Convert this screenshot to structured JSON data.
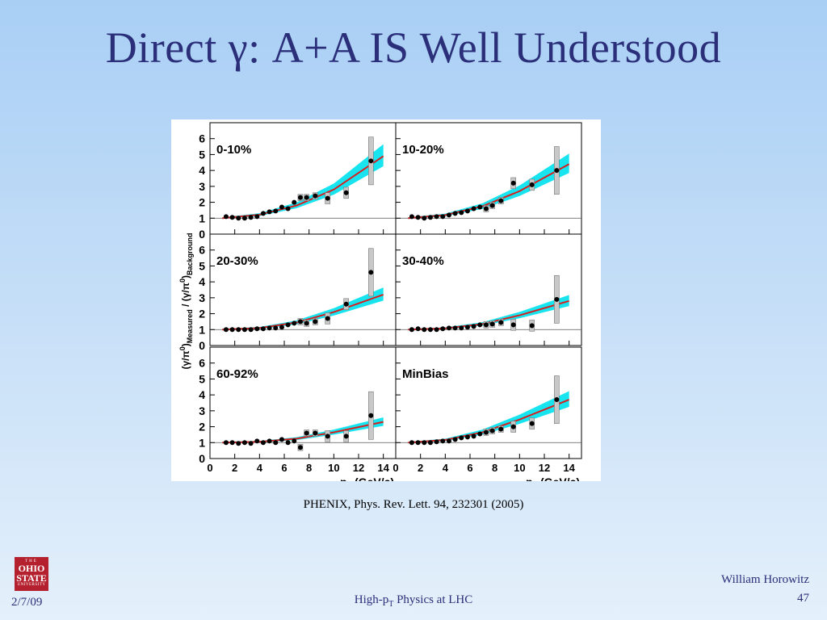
{
  "slide": {
    "title": "Direct γ: A+A IS Well Understood",
    "citation": "PHENIX, Phys. Rev. Lett. 94, 232301 (2005)",
    "logo": {
      "line1": "THE",
      "line2a": "OHIO",
      "line2b": "STATE",
      "line3": "UNIVERSITY"
    },
    "footer": {
      "date": "2/7/09",
      "center_prefix": "High-p",
      "center_sub": "T",
      "center_suffix": " Physics at LHC",
      "author": "William Horowitz",
      "page": "47"
    },
    "colors": {
      "title": "#2b2f7a",
      "band": "#18e4f0",
      "curve": "#d62020",
      "logo": "#b5202e"
    }
  },
  "chart_data": {
    "type": "scatter",
    "layout": "3x2 panel grid",
    "ylabel_parts": {
      "a": "(γ/π",
      "b": "0",
      "c": ")",
      "d": "Measured",
      "e": " / (γ/π",
      "f": "0",
      "g": ")",
      "h": "Background"
    },
    "xlabel_parts": {
      "a": "p",
      "b": "T",
      "c": " (GeV/c)"
    },
    "xlim": [
      0,
      15
    ],
    "ylim": [
      0,
      7
    ],
    "xticks": [
      "0",
      "2",
      "4",
      "6",
      "8",
      "10",
      "12",
      "14"
    ],
    "yticks": [
      "0",
      "1",
      "2",
      "3",
      "4",
      "5",
      "6"
    ],
    "reference_line_y": 1,
    "panels": [
      {
        "label": "0-10%",
        "points": [
          [
            1.3,
            1.1
          ],
          [
            1.8,
            1.05
          ],
          [
            2.3,
            1.0
          ],
          [
            2.8,
            1.0
          ],
          [
            3.3,
            1.05
          ],
          [
            3.8,
            1.1
          ],
          [
            4.3,
            1.3
          ],
          [
            4.8,
            1.4
          ],
          [
            5.3,
            1.45
          ],
          [
            5.8,
            1.7
          ],
          [
            6.3,
            1.6
          ],
          [
            6.8,
            2.0
          ],
          [
            7.3,
            2.3
          ],
          [
            7.8,
            2.3
          ],
          [
            8.5,
            2.4
          ],
          [
            9.5,
            2.25
          ],
          [
            11.0,
            2.6
          ],
          [
            13.0,
            4.6
          ]
        ],
        "curve": [
          [
            1,
            1.0
          ],
          [
            4,
            1.22
          ],
          [
            7,
            1.8
          ],
          [
            10,
            2.8
          ],
          [
            14,
            4.9
          ]
        ]
      },
      {
        "label": "10-20%",
        "points": [
          [
            1.3,
            1.1
          ],
          [
            1.8,
            1.05
          ],
          [
            2.3,
            1.0
          ],
          [
            2.8,
            1.05
          ],
          [
            3.3,
            1.1
          ],
          [
            3.8,
            1.1
          ],
          [
            4.3,
            1.2
          ],
          [
            4.8,
            1.3
          ],
          [
            5.3,
            1.35
          ],
          [
            5.8,
            1.45
          ],
          [
            6.3,
            1.6
          ],
          [
            6.8,
            1.7
          ],
          [
            7.3,
            1.6
          ],
          [
            7.8,
            1.8
          ],
          [
            8.5,
            2.1
          ],
          [
            9.5,
            3.2
          ],
          [
            11.0,
            3.1
          ],
          [
            13.0,
            4.0
          ]
        ],
        "curve": [
          [
            1,
            1.0
          ],
          [
            4,
            1.2
          ],
          [
            7,
            1.75
          ],
          [
            10,
            2.7
          ],
          [
            14,
            4.4
          ]
        ]
      },
      {
        "label": "20-30%",
        "points": [
          [
            1.3,
            1.0
          ],
          [
            1.8,
            1.0
          ],
          [
            2.3,
            1.0
          ],
          [
            2.8,
            1.0
          ],
          [
            3.3,
            1.0
          ],
          [
            3.8,
            1.05
          ],
          [
            4.3,
            1.05
          ],
          [
            4.8,
            1.1
          ],
          [
            5.3,
            1.1
          ],
          [
            5.8,
            1.15
          ],
          [
            6.3,
            1.3
          ],
          [
            6.8,
            1.4
          ],
          [
            7.3,
            1.5
          ],
          [
            7.8,
            1.4
          ],
          [
            8.5,
            1.5
          ],
          [
            9.5,
            1.7
          ],
          [
            11.0,
            2.6
          ],
          [
            13.0,
            4.6
          ]
        ],
        "curve": [
          [
            1,
            1.0
          ],
          [
            4,
            1.1
          ],
          [
            7,
            1.45
          ],
          [
            10,
            2.1
          ],
          [
            14,
            3.2
          ]
        ]
      },
      {
        "label": "30-40%",
        "points": [
          [
            1.3,
            1.0
          ],
          [
            1.8,
            1.05
          ],
          [
            2.3,
            1.0
          ],
          [
            2.8,
            1.0
          ],
          [
            3.3,
            1.0
          ],
          [
            3.8,
            1.05
          ],
          [
            4.3,
            1.1
          ],
          [
            4.8,
            1.1
          ],
          [
            5.3,
            1.1
          ],
          [
            5.8,
            1.15
          ],
          [
            6.3,
            1.2
          ],
          [
            6.8,
            1.3
          ],
          [
            7.3,
            1.3
          ],
          [
            7.8,
            1.35
          ],
          [
            8.5,
            1.45
          ],
          [
            9.5,
            1.3
          ],
          [
            11.0,
            1.25
          ],
          [
            13.0,
            2.9
          ]
        ],
        "curve": [
          [
            1,
            1.0
          ],
          [
            4,
            1.08
          ],
          [
            7,
            1.35
          ],
          [
            10,
            1.9
          ],
          [
            14,
            2.8
          ]
        ]
      },
      {
        "label": "60-92%",
        "points": [
          [
            1.3,
            1.0
          ],
          [
            1.8,
            1.0
          ],
          [
            2.3,
            0.95
          ],
          [
            2.8,
            1.0
          ],
          [
            3.3,
            0.95
          ],
          [
            3.8,
            1.1
          ],
          [
            4.3,
            1.0
          ],
          [
            4.8,
            1.1
          ],
          [
            5.3,
            1.0
          ],
          [
            5.8,
            1.2
          ],
          [
            6.3,
            1.0
          ],
          [
            6.8,
            1.1
          ],
          [
            7.3,
            0.7
          ],
          [
            7.8,
            1.6
          ],
          [
            8.5,
            1.6
          ],
          [
            9.5,
            1.4
          ],
          [
            11.0,
            1.4
          ],
          [
            13.0,
            2.7
          ]
        ],
        "curve": [
          [
            1,
            1.0
          ],
          [
            4,
            1.05
          ],
          [
            7,
            1.25
          ],
          [
            10,
            1.65
          ],
          [
            14,
            2.3
          ]
        ]
      },
      {
        "label": "MinBias",
        "points": [
          [
            1.3,
            1.0
          ],
          [
            1.8,
            1.0
          ],
          [
            2.3,
            1.0
          ],
          [
            2.8,
            1.0
          ],
          [
            3.3,
            1.05
          ],
          [
            3.8,
            1.1
          ],
          [
            4.3,
            1.1
          ],
          [
            4.8,
            1.2
          ],
          [
            5.3,
            1.3
          ],
          [
            5.8,
            1.35
          ],
          [
            6.3,
            1.4
          ],
          [
            6.8,
            1.55
          ],
          [
            7.3,
            1.65
          ],
          [
            7.8,
            1.75
          ],
          [
            8.5,
            1.85
          ],
          [
            9.5,
            2.0
          ],
          [
            11.0,
            2.2
          ],
          [
            13.0,
            3.7
          ]
        ],
        "curve": [
          [
            1,
            1.0
          ],
          [
            4,
            1.17
          ],
          [
            7,
            1.65
          ],
          [
            10,
            2.45
          ],
          [
            14,
            3.7
          ]
        ]
      }
    ]
  }
}
